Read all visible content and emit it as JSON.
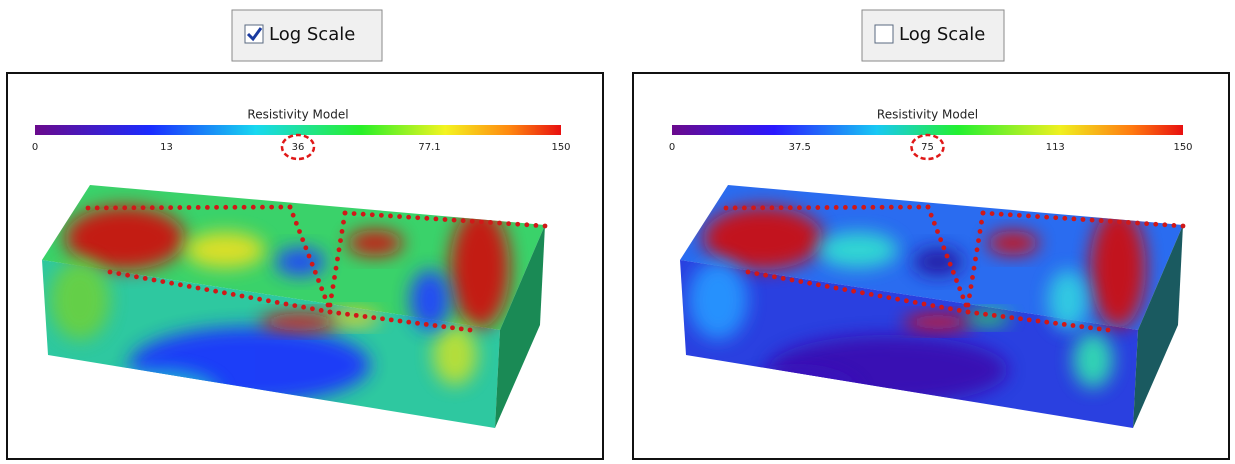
{
  "panels": [
    {
      "checkbox": {
        "label": "Log Scale",
        "checked": true
      },
      "colorbar": {
        "title": "Resistivity Model",
        "ticks": [
          0,
          13,
          36,
          77.1,
          150
        ]
      }
    },
    {
      "checkbox": {
        "label": "Log Scale",
        "checked": false
      },
      "colorbar": {
        "title": "Resistivity Model",
        "ticks": [
          0,
          37.5,
          75,
          113,
          150
        ]
      }
    }
  ]
}
